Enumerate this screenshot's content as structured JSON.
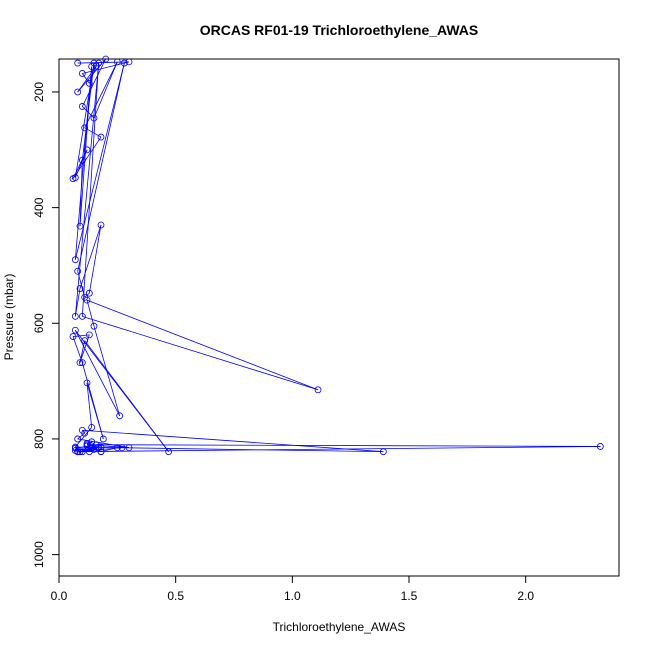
{
  "chart_data": {
    "type": "line",
    "title": "ORCAS RF01-19 Trichloroethylene_AWAS",
    "xlabel": "Trichloroethylene_AWAS",
    "ylabel": "Pressure (mbar)",
    "xlim": [
      0,
      2.4
    ],
    "ylim": [
      1037,
      143
    ],
    "y_reversed": true,
    "x_ticks": [
      0,
      0.5,
      1,
      1.5,
      2
    ],
    "x_tick_labels": [
      "0.0",
      "0.5",
      "1.0",
      "1.5",
      "2.0"
    ],
    "y_ticks": [
      200,
      400,
      600,
      800,
      1000
    ],
    "y_tick_labels": [
      "200",
      "400",
      "600",
      "800",
      "1000"
    ],
    "grid": false,
    "legend": "none",
    "series": [
      {
        "color": "#0000ff",
        "marker": "open-circle",
        "x": [
          0.08,
          0.3,
          0.1,
          0.13,
          0.16,
          0.08,
          0.2,
          0.1,
          0.15,
          0.25,
          0.11,
          0.18,
          0.06,
          0.12,
          0.07,
          0.15,
          0.1,
          0.09,
          0.14,
          0.07,
          0.28,
          0.08,
          0.11,
          0.13,
          0.18,
          0.09,
          0.07,
          0.17,
          0.1,
          1.11,
          0.12,
          0.15,
          0.26,
          0.07,
          0.47,
          0.11,
          0.09,
          0.13,
          0.06,
          0.1,
          0.19,
          0.12,
          0.14,
          0.07,
          1.39,
          0.1,
          0.11,
          0.08,
          0.3,
          0.12,
          0.16,
          2.32,
          0.08,
          0.13,
          0.17,
          0.07,
          0.14,
          0.12,
          0.18,
          0.25,
          0.27,
          0.08,
          0.15,
          0.18,
          0.12,
          0.14,
          0.1,
          0.09,
          0.07,
          0.14,
          0.18,
          0.08
        ],
        "y": [
          150,
          148,
          168,
          185,
          155,
          200,
          143,
          225,
          245,
          148,
          262,
          278,
          350,
          300,
          348,
          150,
          318,
          432,
          156,
          490,
          150,
          510,
          555,
          548,
          430,
          540,
          588,
          150,
          588,
          715,
          560,
          605,
          760,
          612,
          822,
          630,
          668,
          620,
          623,
          668,
          800,
          703,
          780,
          814,
          822,
          785,
          790,
          800,
          815,
          810,
          810,
          813,
          822,
          822,
          814,
          820,
          816,
          812,
          822,
          815,
          815,
          822,
          818,
          822,
          808,
          805,
          822,
          822,
          816,
          812,
          814,
          822
        ]
      }
    ]
  }
}
